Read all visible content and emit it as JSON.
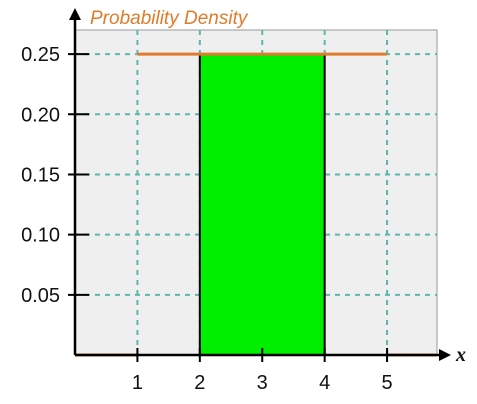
{
  "chart_data": {
    "type": "area",
    "title": "",
    "ylabel": "Probability Density",
    "xlabel": "x",
    "xlim": [
      0,
      5.8
    ],
    "ylim": [
      0,
      0.27
    ],
    "x_ticks": [
      1,
      2,
      3,
      4,
      5
    ],
    "x_tick_labels": [
      "1",
      "2",
      "3",
      "4",
      "5"
    ],
    "y_ticks": [
      0.05,
      0.1,
      0.15,
      0.2,
      0.25
    ],
    "y_tick_labels": [
      "0.05",
      "0.10",
      "0.15",
      "0.20",
      "0.25"
    ],
    "grid": true,
    "density": {
      "segments": [
        {
          "x": [
            0,
            1
          ],
          "y": [
            0,
            0
          ]
        },
        {
          "x": [
            1,
            5
          ],
          "y": [
            0.25,
            0.25
          ]
        },
        {
          "x": [
            5,
            5.8
          ],
          "y": [
            0,
            0
          ]
        }
      ]
    },
    "shaded_region": {
      "x_from": 2,
      "x_to": 4,
      "height": 0.25
    },
    "colors": {
      "density_line": "#e07b2c",
      "shaded_fill": "#00ee00",
      "grid": "#5bb7b0",
      "plot_background": "#efefef",
      "axis": "#000000"
    }
  }
}
